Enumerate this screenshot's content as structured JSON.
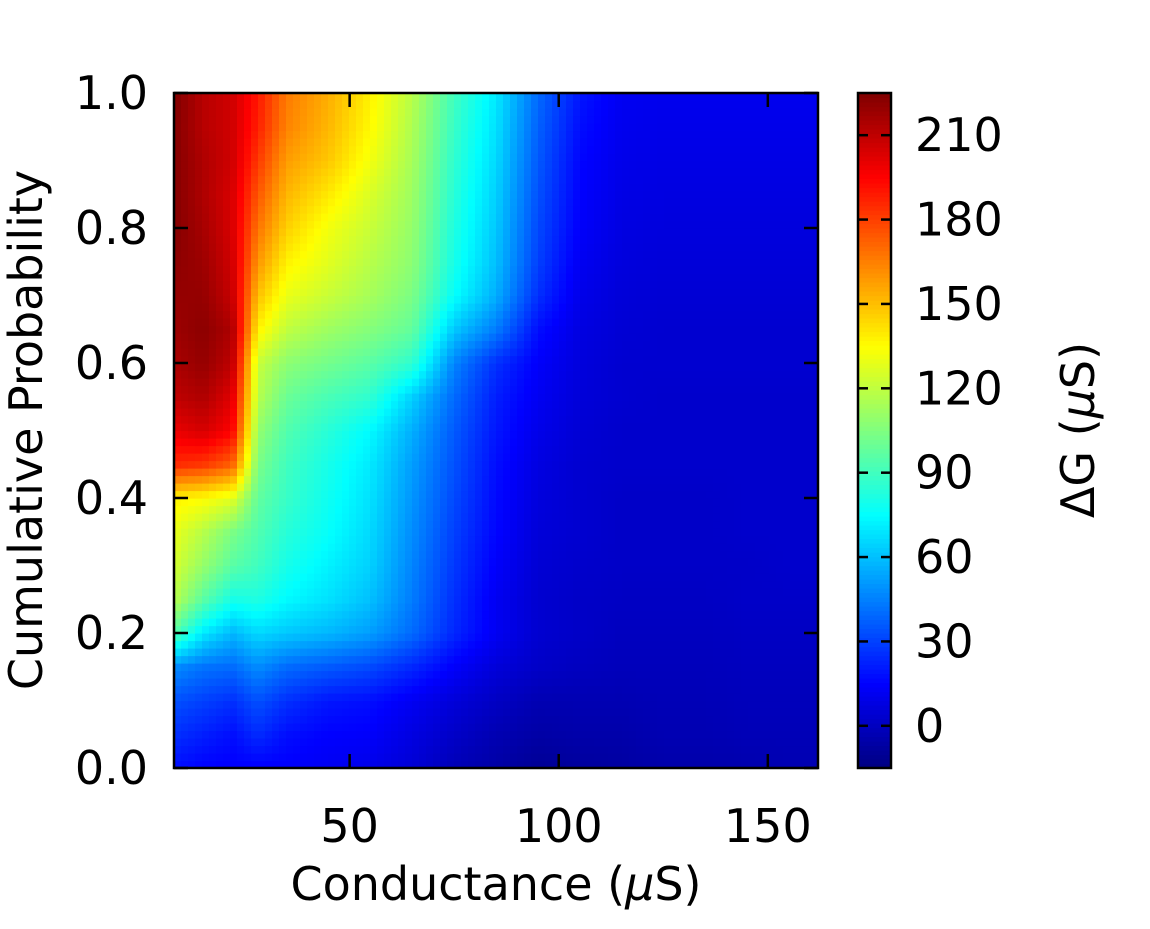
{
  "chart_data": {
    "type": "heatmap",
    "title": "",
    "xlabel_prefix": "Conductance (",
    "xlabel_mu": "μ",
    "xlabel_suffix": "S)",
    "ylabel": "Cumulative Probability",
    "xlim": [
      8,
      162
    ],
    "ylim": [
      0.0,
      1.0
    ],
    "x_ticks": [
      50,
      100,
      150
    ],
    "x_tick_labels": [
      "50",
      "100",
      "150"
    ],
    "y_ticks": [
      0.0,
      0.2,
      0.4,
      0.6,
      0.8,
      1.0
    ],
    "y_tick_labels": [
      "0.0",
      "0.2",
      "0.4",
      "0.6",
      "0.8",
      "1.0"
    ],
    "colormap": "jet",
    "colorbar": {
      "label_prefix": "ΔG (",
      "label_mu": "μ",
      "label_suffix": "S)",
      "range": [
        -15,
        225
      ],
      "ticks": [
        0,
        30,
        60,
        90,
        120,
        150,
        180,
        210
      ],
      "tick_labels": [
        "0",
        "30",
        "60",
        "90",
        "120",
        "150",
        "180",
        "210"
      ]
    },
    "grid": false,
    "z_grid": {
      "x": [
        8,
        15,
        22,
        28,
        35,
        45,
        55,
        65,
        75,
        85,
        95,
        105,
        115,
        125,
        135,
        145,
        155,
        162
      ],
      "y": [
        0.0,
        0.05,
        0.1,
        0.15,
        0.2,
        0.25,
        0.3,
        0.35,
        0.4,
        0.45,
        0.5,
        0.55,
        0.6,
        0.65,
        0.7,
        0.75,
        0.8,
        0.85,
        0.9,
        0.95,
        1.0
      ],
      "z": [
        [
          18,
          15,
          14,
          14,
          14,
          12,
          10,
          5,
          -2,
          -6,
          -10,
          -8,
          -7,
          -5,
          -5,
          -4,
          -3,
          -3
        ],
        [
          26,
          22,
          18,
          25,
          18,
          15,
          14,
          8,
          2,
          -3,
          -6,
          -5,
          -5,
          -3,
          -3,
          -2,
          -2,
          -2
        ],
        [
          34,
          30,
          26,
          34,
          26,
          20,
          18,
          12,
          6,
          1,
          -3,
          -3,
          -3,
          -2,
          -2,
          -1,
          -1,
          -1
        ],
        [
          48,
          42,
          40,
          48,
          40,
          36,
          32,
          24,
          14,
          6,
          2,
          0,
          -1,
          -1,
          -1,
          0,
          0,
          0
        ],
        [
          95,
          70,
          58,
          66,
          62,
          58,
          52,
          40,
          24,
          12,
          4,
          2,
          0,
          0,
          0,
          1,
          1,
          1
        ],
        [
          118,
          96,
          80,
          82,
          74,
          68,
          60,
          44,
          26,
          12,
          4,
          2,
          1,
          1,
          1,
          2,
          2,
          2
        ],
        [
          125,
          110,
          96,
          90,
          80,
          72,
          64,
          46,
          28,
          14,
          5,
          3,
          2,
          2,
          2,
          2,
          3,
          3
        ],
        [
          130,
          118,
          104,
          94,
          84,
          76,
          66,
          48,
          30,
          16,
          6,
          4,
          2,
          2,
          2,
          3,
          3,
          3
        ],
        [
          138,
          135,
          128,
          98,
          88,
          78,
          68,
          50,
          32,
          17,
          7,
          4,
          2,
          2,
          2,
          3,
          3,
          3
        ],
        [
          185,
          182,
          172,
          104,
          90,
          80,
          70,
          52,
          34,
          18,
          8,
          4,
          3,
          3,
          3,
          3,
          3,
          3
        ],
        [
          200,
          205,
          195,
          110,
          94,
          84,
          74,
          56,
          36,
          20,
          10,
          5,
          3,
          3,
          3,
          3,
          3,
          3
        ],
        [
          210,
          214,
          202,
          118,
          100,
          92,
          86,
          64,
          40,
          22,
          12,
          6,
          4,
          3,
          3,
          3,
          3,
          3
        ],
        [
          215,
          220,
          210,
          122,
          108,
          102,
          96,
          86,
          46,
          26,
          14,
          7,
          4,
          4,
          4,
          4,
          4,
          4
        ],
        [
          218,
          222,
          214,
          138,
          120,
          112,
          106,
          98,
          62,
          44,
          18,
          8,
          5,
          4,
          4,
          4,
          4,
          4
        ],
        [
          220,
          220,
          208,
          150,
          130,
          122,
          114,
          104,
          76,
          56,
          26,
          10,
          6,
          5,
          5,
          5,
          5,
          5
        ],
        [
          222,
          218,
          206,
          160,
          138,
          128,
          118,
          108,
          80,
          60,
          30,
          12,
          7,
          6,
          6,
          6,
          6,
          6
        ],
        [
          224,
          216,
          204,
          168,
          146,
          132,
          122,
          110,
          82,
          62,
          32,
          14,
          8,
          7,
          7,
          7,
          7,
          7
        ],
        [
          224,
          214,
          204,
          175,
          152,
          140,
          126,
          112,
          84,
          64,
          34,
          15,
          9,
          8,
          8,
          8,
          8,
          8
        ],
        [
          224,
          214,
          206,
          182,
          158,
          148,
          132,
          114,
          86,
          66,
          36,
          16,
          10,
          9,
          9,
          9,
          9,
          9
        ],
        [
          224,
          212,
          206,
          188,
          164,
          152,
          136,
          116,
          88,
          68,
          38,
          18,
          11,
          10,
          10,
          10,
          10,
          10
        ],
        [
          225,
          212,
          206,
          190,
          166,
          154,
          138,
          118,
          90,
          70,
          40,
          20,
          12,
          11,
          11,
          11,
          11,
          11
        ]
      ]
    }
  }
}
